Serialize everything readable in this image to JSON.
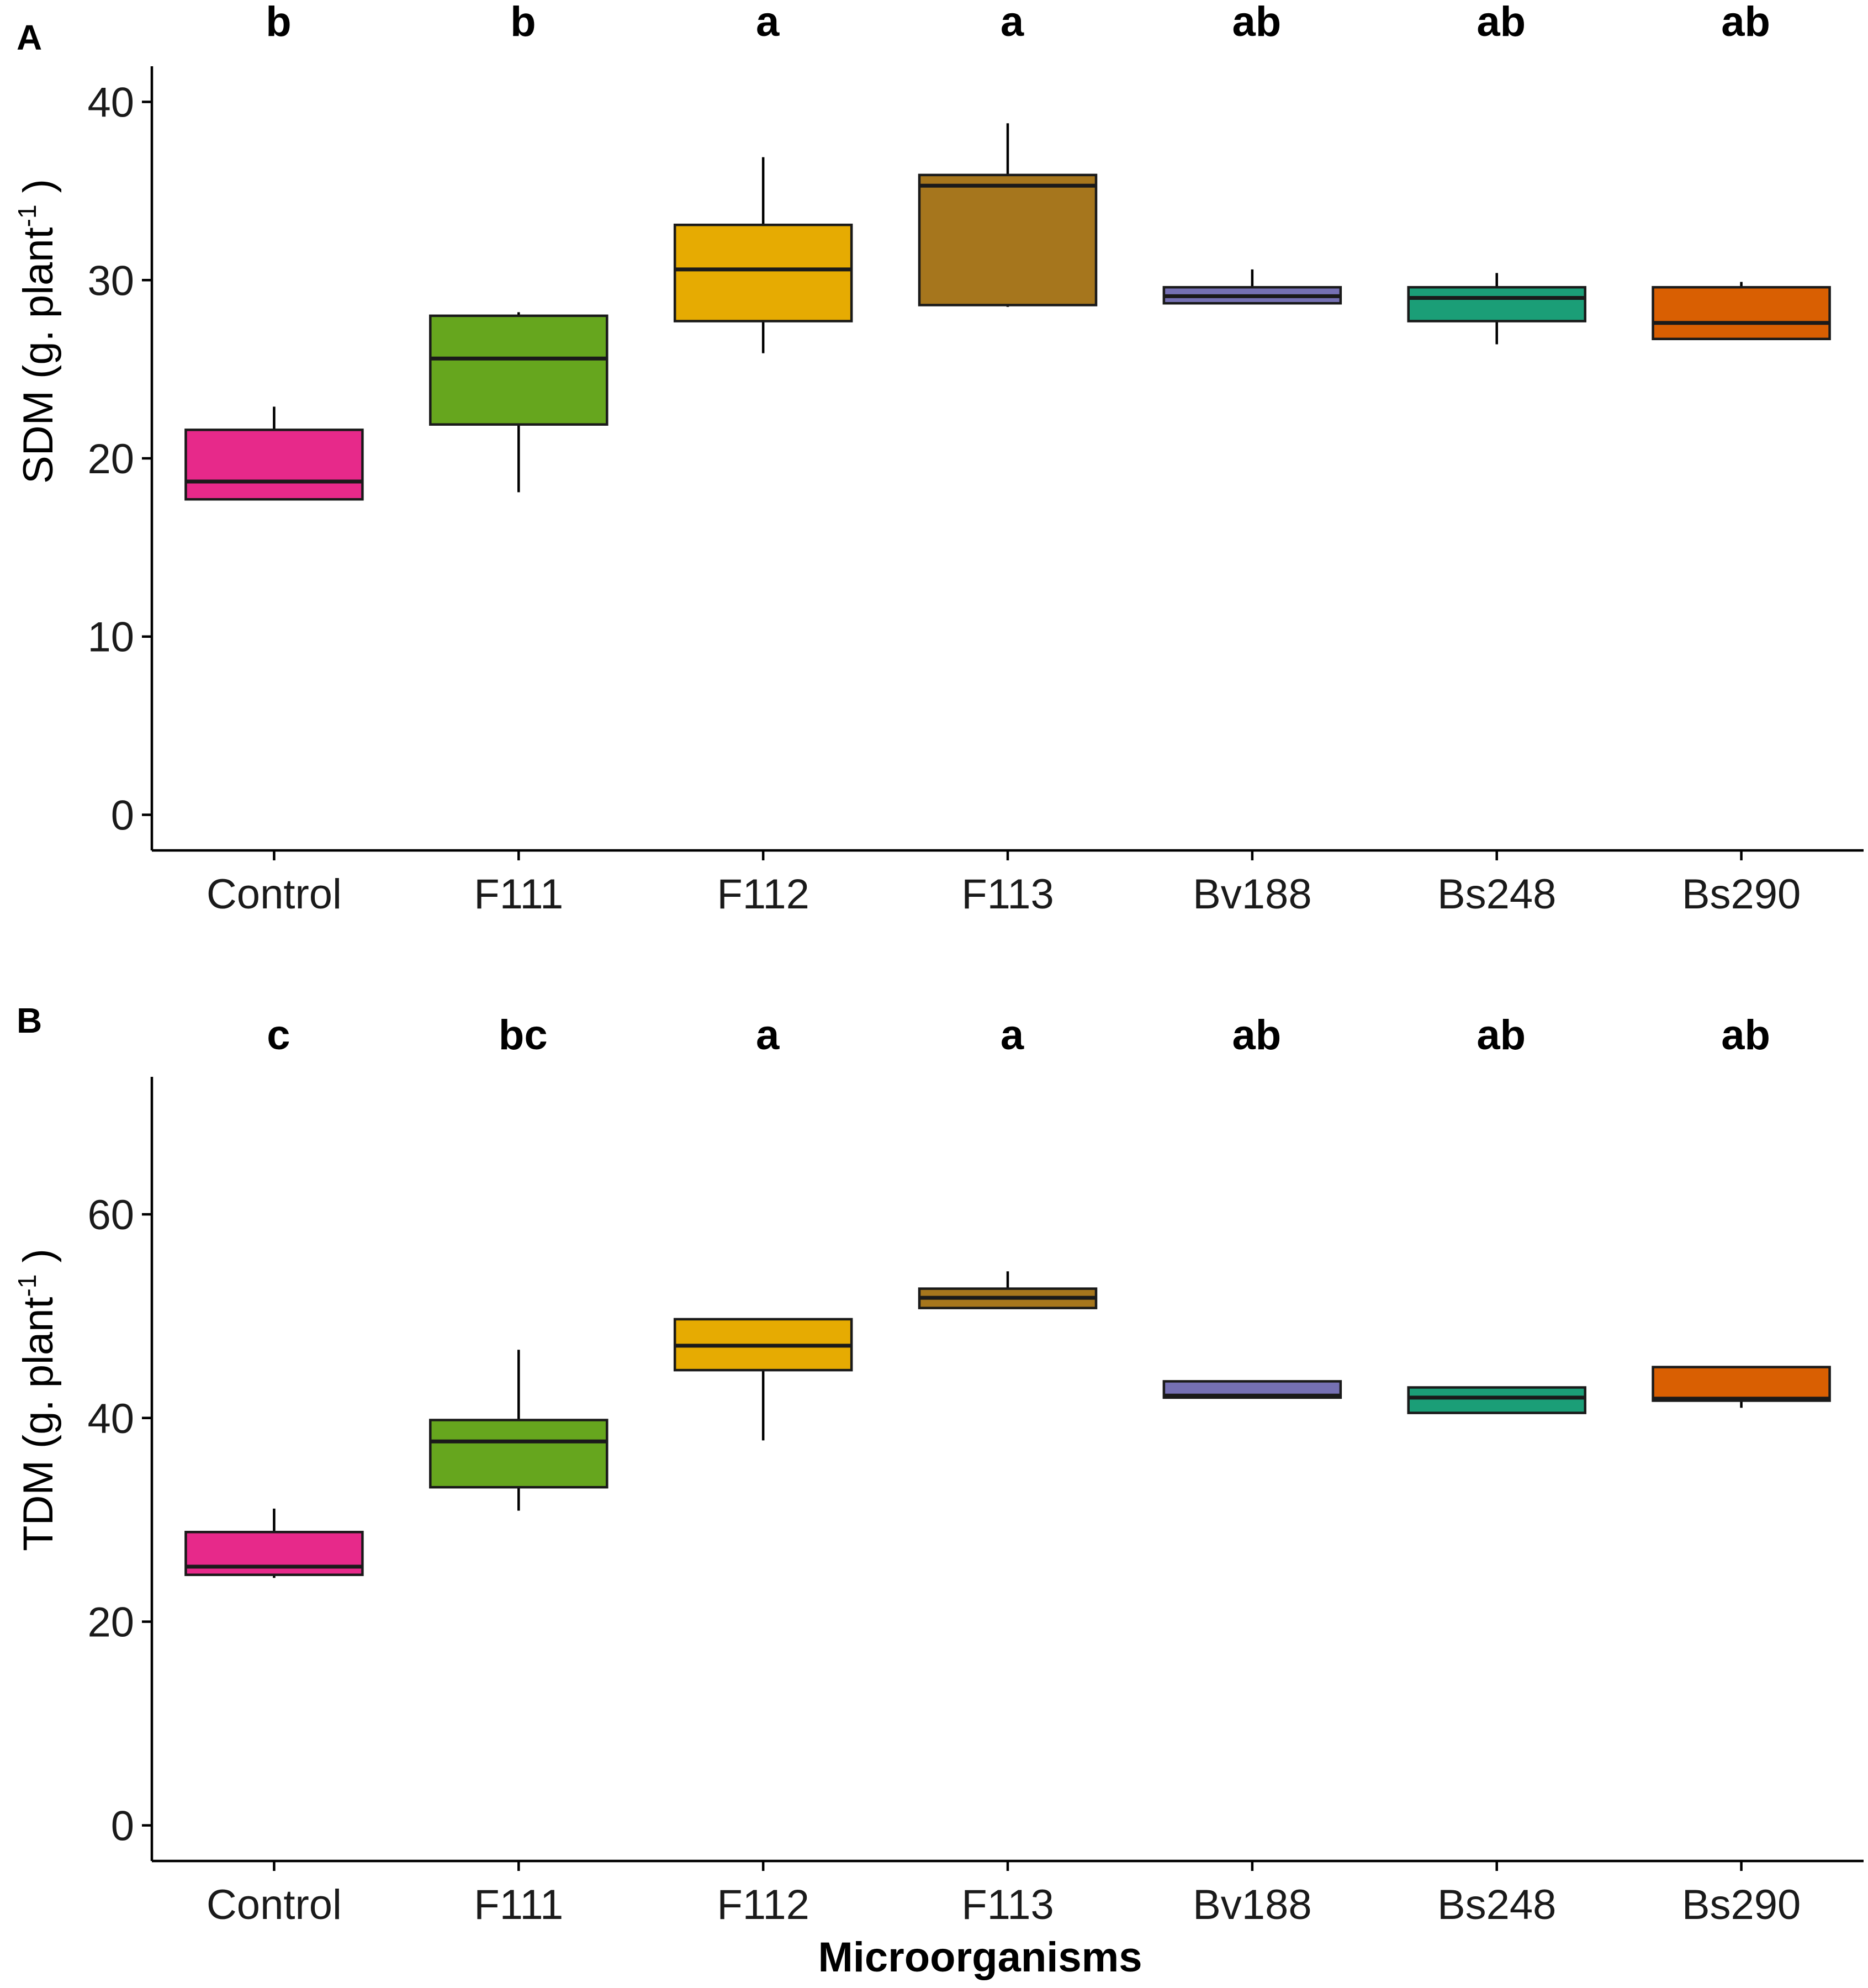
{
  "x_axis_title": "Microorganisms",
  "chart_data": [
    {
      "type": "box",
      "panel_label": "A",
      "ylabel_main": "SDM (g. plant",
      "ylabel_sup": "-1",
      "ylabel_end": ")",
      "ylim": [
        -2,
        42
      ],
      "yticks": [
        0,
        10,
        20,
        30,
        40
      ],
      "categories": [
        "Control",
        "F111",
        "F112",
        "F113",
        "Bv188",
        "Bs248",
        "Bs290"
      ],
      "significance": [
        "b",
        "b",
        "a",
        "a",
        "ab",
        "ab",
        "ab"
      ],
      "colors": [
        "#e7298a",
        "#66a61e",
        "#e6ab02",
        "#a6761d",
        "#7570b3",
        "#1b9e77",
        "#d95f02"
      ],
      "boxes": [
        {
          "min": 17.7,
          "q1": 17.7,
          "median": 18.7,
          "q3": 21.6,
          "max": 22.9
        },
        {
          "min": 18.1,
          "q1": 21.9,
          "median": 25.6,
          "q3": 28.0,
          "max": 28.2
        },
        {
          "min": 25.9,
          "q1": 27.7,
          "median": 30.6,
          "q3": 33.1,
          "max": 36.9
        },
        {
          "min": 28.5,
          "q1": 28.6,
          "median": 35.3,
          "q3": 35.9,
          "max": 38.8
        },
        {
          "min": 28.7,
          "q1": 28.7,
          "median": 29.1,
          "q3": 29.6,
          "max": 30.6
        },
        {
          "min": 26.4,
          "q1": 27.7,
          "median": 29.0,
          "q3": 29.6,
          "max": 30.4
        },
        {
          "min": 26.7,
          "q1": 26.7,
          "median": 27.6,
          "q3": 29.6,
          "max": 29.9
        }
      ]
    },
    {
      "type": "box",
      "panel_label": "B",
      "ylabel_main": "TDM (g. plant",
      "ylabel_sup": "-1",
      "ylabel_end": ")",
      "ylim": [
        -3.5,
        73.5
      ],
      "yticks": [
        0,
        20,
        40,
        60
      ],
      "categories": [
        "Control",
        "F111",
        "F112",
        "F113",
        "Bv188",
        "Bs248",
        "Bs290"
      ],
      "significance": [
        "c",
        "bc",
        "a",
        "a",
        "ab",
        "ab",
        "ab"
      ],
      "colors": [
        "#e7298a",
        "#66a61e",
        "#e6ab02",
        "#a6761d",
        "#7570b3",
        "#1b9e77",
        "#d95f02"
      ],
      "boxes": [
        {
          "min": 24.3,
          "q1": 24.6,
          "median": 25.4,
          "q3": 28.8,
          "max": 31.1
        },
        {
          "min": 30.9,
          "q1": 33.2,
          "median": 37.7,
          "q3": 39.8,
          "max": 46.7
        },
        {
          "min": 37.8,
          "q1": 44.7,
          "median": 47.1,
          "q3": 49.7,
          "max": 49.7
        },
        {
          "min": 50.8,
          "q1": 50.8,
          "median": 51.8,
          "q3": 52.7,
          "max": 54.4
        },
        {
          "min": 42.0,
          "q1": 42.0,
          "median": 42.2,
          "q3": 43.6,
          "max": 43.6
        },
        {
          "min": 40.5,
          "q1": 40.5,
          "median": 42.0,
          "q3": 43.0,
          "max": 43.0
        },
        {
          "min": 41.0,
          "q1": 41.7,
          "median": 41.9,
          "q3": 45.0,
          "max": 45.0
        }
      ]
    }
  ]
}
